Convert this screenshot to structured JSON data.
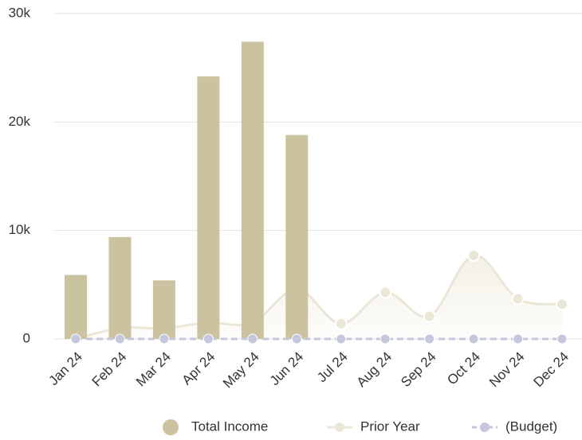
{
  "chart_data": {
    "type": "bar",
    "categories": [
      "Jan 24",
      "Feb 24",
      "Mar 24",
      "Apr 24",
      "May 24",
      "Jun 24",
      "Jul 24",
      "Aug 24",
      "Sep 24",
      "Oct 24",
      "Nov 24",
      "Dec 24"
    ],
    "series": [
      {
        "name": "Total Income",
        "type": "bar",
        "color": "#cbc29f",
        "values": [
          5900,
          9400,
          5400,
          24200,
          27400,
          18800,
          null,
          null,
          null,
          null,
          null,
          null
        ]
      },
      {
        "name": "Prior Year",
        "type": "area",
        "color": "#ebe7d6",
        "values": [
          0,
          1000,
          1000,
          1500,
          1500,
          4600,
          1400,
          4300,
          2100,
          7700,
          3700,
          3200
        ]
      },
      {
        "name": "(Budget)",
        "type": "line",
        "dashed": true,
        "color": "#c5c8dc",
        "values": [
          0,
          0,
          0,
          0,
          0,
          0,
          0,
          0,
          0,
          0,
          0,
          0
        ]
      }
    ],
    "ylim": [
      0,
      30000
    ],
    "yticks": [
      0,
      {
        "value": 10000,
        "label": "10k"
      },
      {
        "value": 20000,
        "label": "20k"
      },
      {
        "value": 30000,
        "label": "30k"
      }
    ],
    "grid": true,
    "legend": "bottom"
  }
}
